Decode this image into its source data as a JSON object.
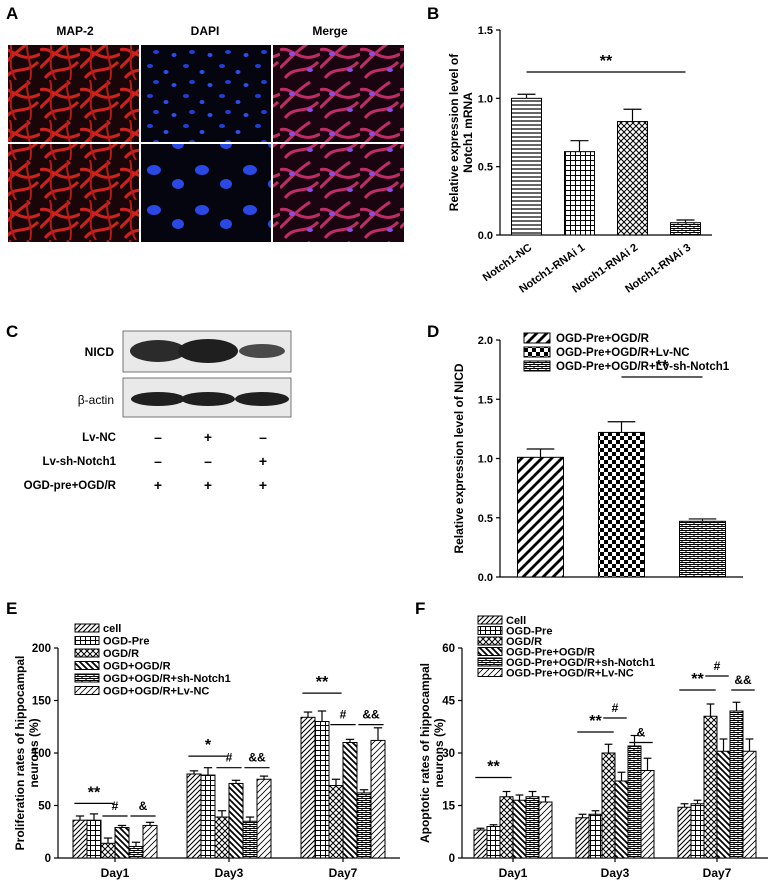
{
  "panel_letters": [
    "A",
    "B",
    "C",
    "D",
    "E",
    "F"
  ],
  "panel_a": {
    "columns": [
      "MAP-2",
      "DAPI",
      "Merge"
    ],
    "colors": {
      "map2": "#d0221c",
      "dapi": "#1f3fd8",
      "merge": "#c02c66",
      "bg": "#0c0410"
    }
  },
  "panel_c": {
    "bands": [
      "NICD",
      "β-actin"
    ],
    "conditions": [
      {
        "name": "Lv-NC",
        "marks": [
          "–",
          "+",
          "–"
        ]
      },
      {
        "name": "Lv-sh-Notch1",
        "marks": [
          "–",
          "–",
          "+"
        ]
      },
      {
        "name": "OGD-pre+OGD/R",
        "marks": [
          "+",
          "+",
          "+"
        ]
      }
    ]
  },
  "chart_data": [
    {
      "panel": "B",
      "type": "bar",
      "ylabel": "Relative expression level of\nNotch1 mRNA",
      "ylim": [
        0,
        1.5
      ],
      "yticks": [
        "0.0",
        "0.5",
        "1.0",
        "1.5"
      ],
      "categories": [
        "Notch1-NC",
        "Notch1-RNAi 1",
        "Notch1-RNAi 2",
        "Notch1-RNAi 3"
      ],
      "values": [
        1.0,
        0.61,
        0.83,
        0.09
      ],
      "errors": [
        0.03,
        0.08,
        0.09,
        0.02
      ],
      "patterns": [
        "hlines",
        "grid",
        "diag-cross",
        "brick"
      ],
      "significance": [
        {
          "label": "**",
          "from": 0,
          "to": 3
        }
      ]
    },
    {
      "panel": "D",
      "type": "bar",
      "ylabel": "Relative expression level of NICD",
      "ylim": [
        0,
        2.0
      ],
      "yticks": [
        "0.0",
        "0.5",
        "1.0",
        "1.5",
        "2.0"
      ],
      "categories": [
        "OGD-Pre+OGD/R",
        "OGD-Pre+OGD/R+Lv-NC",
        "OGD-Pre+OGD/R+Lv-sh-Notch1"
      ],
      "legend": [
        "OGD-Pre+OGD/R",
        "OGD-Pre+OGD/R+Lv-NC",
        "OGD-Pre+OGD/R+Lv-sh-Notch1"
      ],
      "values": [
        1.01,
        1.22,
        0.47
      ],
      "errors": [
        0.07,
        0.09,
        0.02
      ],
      "patterns": [
        "diag-thick",
        "checker",
        "brick"
      ],
      "significance": [
        {
          "label": "**",
          "from": 1,
          "to": 2
        }
      ]
    },
    {
      "panel": "E",
      "type": "bar",
      "ylabel": "Proliferation rates of hippocampal\nneurons (%)",
      "ylim": [
        0,
        200
      ],
      "yticks": [
        "0",
        "50",
        "100",
        "150",
        "200"
      ],
      "categories": [
        "Day1",
        "Day3",
        "Day7"
      ],
      "series": [
        {
          "name": "cell",
          "values": [
            36,
            80,
            134
          ],
          "errors": [
            4,
            3,
            5
          ],
          "pattern": "diag"
        },
        {
          "name": "OGD-Pre",
          "values": [
            36,
            79,
            130
          ],
          "errors": [
            6,
            7,
            10
          ],
          "pattern": "grid"
        },
        {
          "name": "OGD/R",
          "values": [
            14,
            39,
            69
          ],
          "errors": [
            5,
            6,
            6
          ],
          "pattern": "diag-cross"
        },
        {
          "name": "OGD+OGD/R",
          "values": [
            29,
            71,
            110
          ],
          "errors": [
            2,
            3,
            3
          ],
          "pattern": "diag-back"
        },
        {
          "name": "OGD+OGD/R+sh-Notch1",
          "values": [
            11,
            35,
            62
          ],
          "errors": [
            4,
            4,
            3
          ],
          "pattern": "brick"
        },
        {
          "name": "OGD+OGD/R+Lv-NC",
          "values": [
            31,
            75,
            112
          ],
          "errors": [
            3,
            3,
            12
          ],
          "pattern": "diag-light"
        }
      ],
      "significance": [
        {
          "label": "**",
          "group": 0,
          "from": 0,
          "to": 2,
          "y": 52
        },
        {
          "label": "#",
          "group": 0,
          "from": 2,
          "to": 3,
          "y": 40
        },
        {
          "label": "&",
          "group": 0,
          "from": 4,
          "to": 5,
          "y": 40
        },
        {
          "label": "*",
          "group": 1,
          "from": 0,
          "to": 2,
          "y": 97
        },
        {
          "label": "#",
          "group": 1,
          "from": 2,
          "to": 3,
          "y": 86
        },
        {
          "label": "&&",
          "group": 1,
          "from": 4,
          "to": 5,
          "y": 86
        },
        {
          "label": "**",
          "group": 2,
          "from": 0,
          "to": 2,
          "y": 157
        },
        {
          "label": "#",
          "group": 2,
          "from": 2,
          "to": 3,
          "y": 127
        },
        {
          "label": "&&",
          "group": 2,
          "from": 4,
          "to": 5,
          "y": 127
        }
      ]
    },
    {
      "panel": "F",
      "type": "bar",
      "ylabel": "Apoptotic rates of hippocampal\nneurons (%)",
      "ylim": [
        0,
        60
      ],
      "yticks": [
        "0",
        "15",
        "30",
        "45",
        "60"
      ],
      "categories": [
        "Day1",
        "Day3",
        "Day7"
      ],
      "series": [
        {
          "name": "Cell",
          "values": [
            8,
            11.5,
            14.5
          ],
          "errors": [
            0.5,
            1,
            1
          ],
          "pattern": "diag"
        },
        {
          "name": "OGD-Pre",
          "values": [
            9,
            12.5,
            15.5
          ],
          "errors": [
            0.5,
            1,
            1
          ],
          "pattern": "grid"
        },
        {
          "name": "OGD/R",
          "values": [
            17.5,
            30,
            40.5
          ],
          "errors": [
            1.5,
            2.5,
            3.5
          ],
          "pattern": "diag-cross"
        },
        {
          "name": "OGD-Pre+OGD/R",
          "values": [
            16.5,
            22,
            30.5
          ],
          "errors": [
            1.5,
            2.5,
            3.5
          ],
          "pattern": "diag-back"
        },
        {
          "name": "OGD-Pre+OGD/R+sh-Notch1",
          "values": [
            17.5,
            32,
            42
          ],
          "errors": [
            1.5,
            3,
            2.5
          ],
          "pattern": "brick"
        },
        {
          "name": "OGD-Pre+OGD/R+Lv-NC",
          "values": [
            16,
            25,
            30.5
          ],
          "errors": [
            1.5,
            3.5,
            3.5
          ],
          "pattern": "diag-light"
        }
      ],
      "significance": [
        {
          "label": "**",
          "group": 0,
          "from": 0,
          "to": 2,
          "y": 23
        },
        {
          "label": "**",
          "group": 1,
          "from": 0,
          "to": 2,
          "y": 36
        },
        {
          "label": "#",
          "group": 1,
          "from": 2,
          "to": 3,
          "y": 40
        },
        {
          "label": "&",
          "group": 1,
          "from": 4,
          "to": 5,
          "y": 33
        },
        {
          "label": "**",
          "group": 2,
          "from": 0,
          "to": 2,
          "y": 48
        },
        {
          "label": "#",
          "group": 2,
          "from": 2,
          "to": 3,
          "y": 52
        },
        {
          "label": "&&",
          "group": 2,
          "from": 4,
          "to": 5,
          "y": 48
        }
      ]
    }
  ]
}
